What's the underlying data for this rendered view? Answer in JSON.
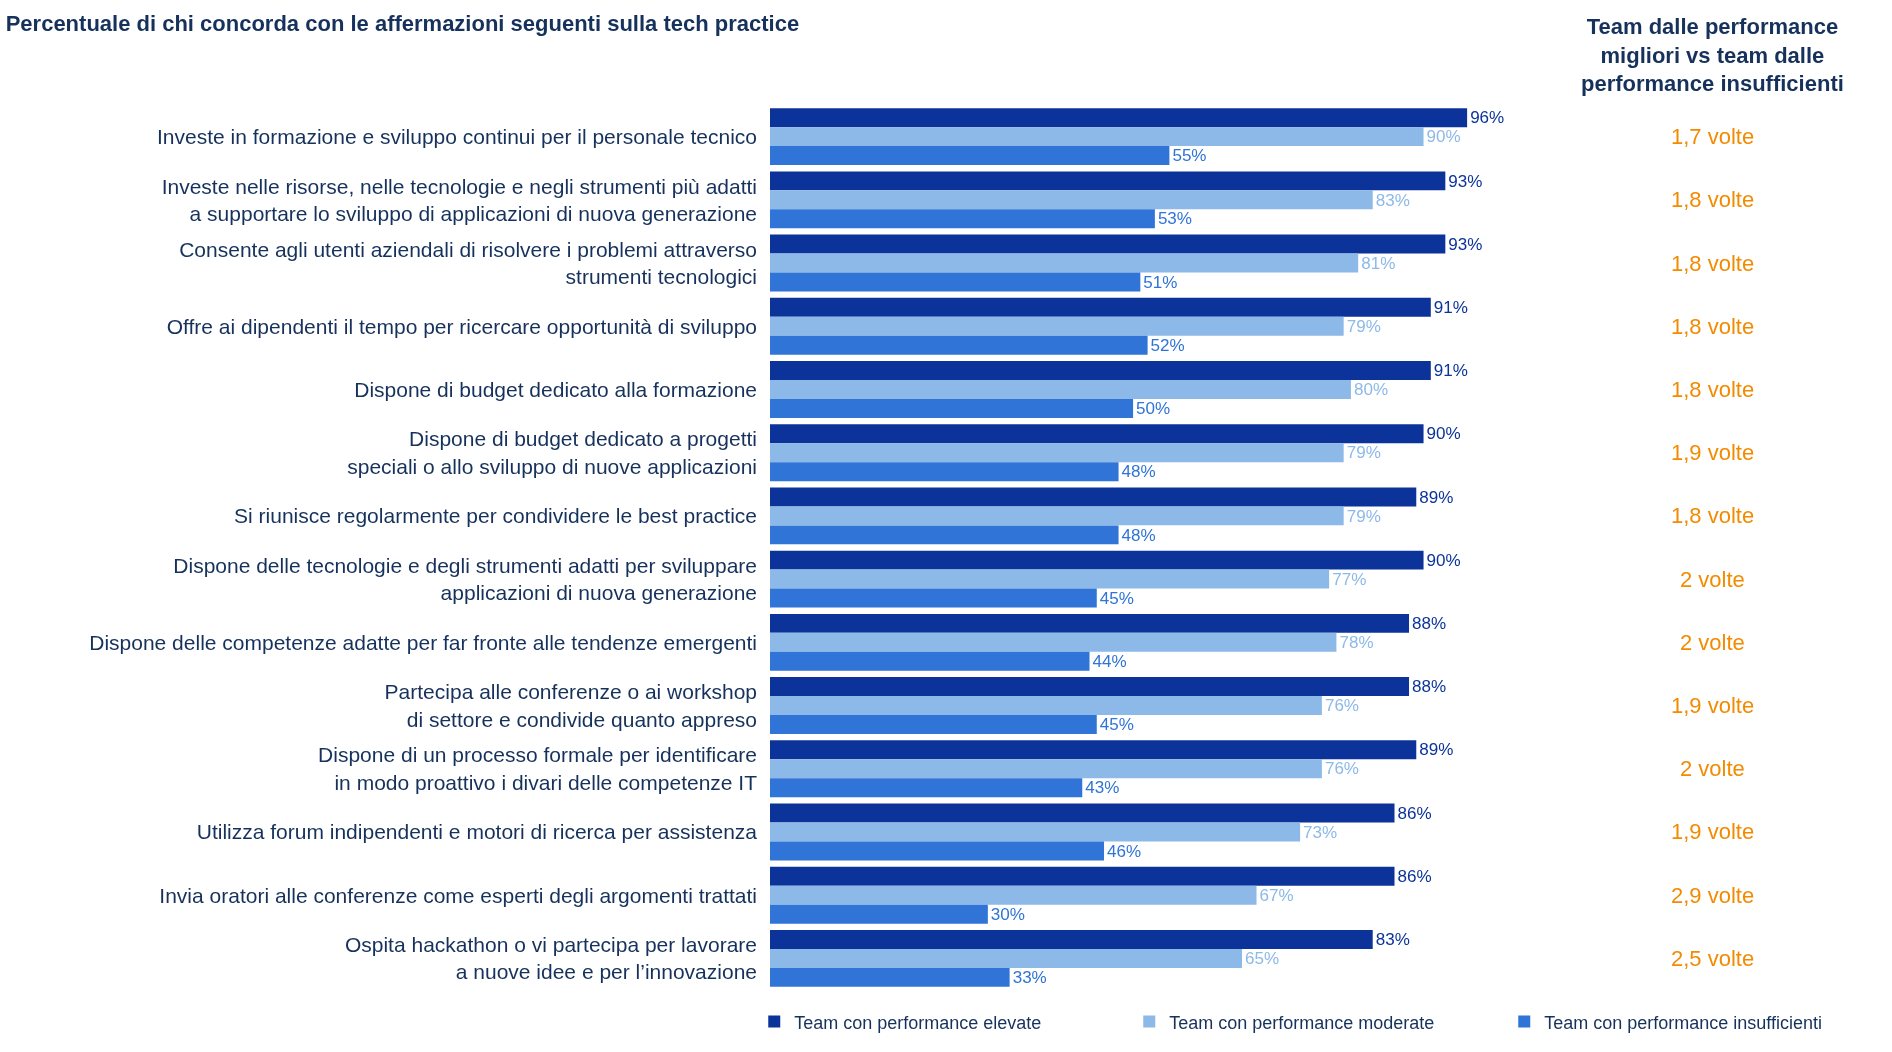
{
  "chart_data": {
    "type": "bar",
    "orientation": "horizontal",
    "title": "Percentuale di chi concorda con le affermazioni seguenti sulla tech practice",
    "categories": [
      "Investe in formazione e sviluppo continui per il personale tecnico",
      "Investe nelle risorse, nelle tecnologie e negli strumenti più adatti\na supportare lo sviluppo di applicazioni di nuova generazione",
      "Consente agli utenti aziendali di risolvere i problemi attraverso\nstrumenti tecnologici",
      "Offre ai dipendenti il tempo per ricercare opportunità di sviluppo",
      "Dispone di budget dedicato alla formazione",
      "Dispone di budget dedicato a progetti\nspeciali o allo sviluppo di nuove applicazioni",
      "Si riunisce regolarmente per condividere le best practice",
      "Dispone delle tecnologie e degli strumenti adatti per sviluppare\napplicazioni di nuova generazione",
      "Dispone delle competenze adatte per far fronte alle tendenze emergenti",
      "Partecipa alle conferenze o ai workshop\ndi settore e condivide quanto appreso",
      "Dispone di un processo formale per identificare\nin modo proattivo i divari delle competenze IT",
      "Utilizza forum indipendenti e motori di ricerca per assistenza",
      "Invia oratori alle conferenze come esperti degli argomenti trattati",
      "Ospita hackathon o vi partecipa per lavorare\na nuove idee e per l’innovazione"
    ],
    "series": [
      {
        "name": "Team con performance elevate",
        "color": "#0b3399",
        "values": [
          96,
          93,
          93,
          91,
          91,
          90,
          89,
          90,
          88,
          88,
          89,
          86,
          86,
          83
        ],
        "value_labels": [
          "96%",
          "93%",
          "93%",
          "91%",
          "91%",
          "90%",
          "89%",
          "90%",
          "88%",
          "88%",
          "89%",
          "86%",
          "86%",
          "83%"
        ]
      },
      {
        "name": "Team con performance moderate",
        "color": "#8db9e8",
        "values": [
          90,
          83,
          81,
          79,
          80,
          79,
          79,
          77,
          78,
          76,
          76,
          73,
          67,
          65
        ],
        "value_labels": [
          "90%",
          "83%",
          "81%",
          "79%",
          "80%",
          "79%",
          "79%",
          "77%",
          "78%",
          "76%",
          "76%",
          "73%",
          "67%",
          "65%"
        ]
      },
      {
        "name": "Team con performance insufficienti",
        "color": "#2f74d6",
        "values": [
          55,
          53,
          51,
          52,
          50,
          48,
          48,
          45,
          44,
          45,
          43,
          46,
          30,
          33
        ],
        "value_labels": [
          "55%",
          "53%",
          "51%",
          "52%",
          "50%",
          "48%",
          "48%",
          "45%",
          "44%",
          "45%",
          "43%",
          "46%",
          "30%",
          "33%"
        ]
      }
    ],
    "annotations": [
      "Team dalle performance\nmigliori vs team dalle\nperformance insufficienti",
      "1,7 volte",
      "1,8 volte",
      "1,8 volte",
      "1,8 volte",
      "1,8 volte",
      "1,9 volte",
      "1,8 volte",
      "2 volte",
      "2 volte",
      "1,9 volte",
      "2 volte",
      "1,9 volte",
      "2,9 volte",
      "2,5 volte"
    ],
    "legend": "bottom",
    "tick_labels": "y"
  }
}
